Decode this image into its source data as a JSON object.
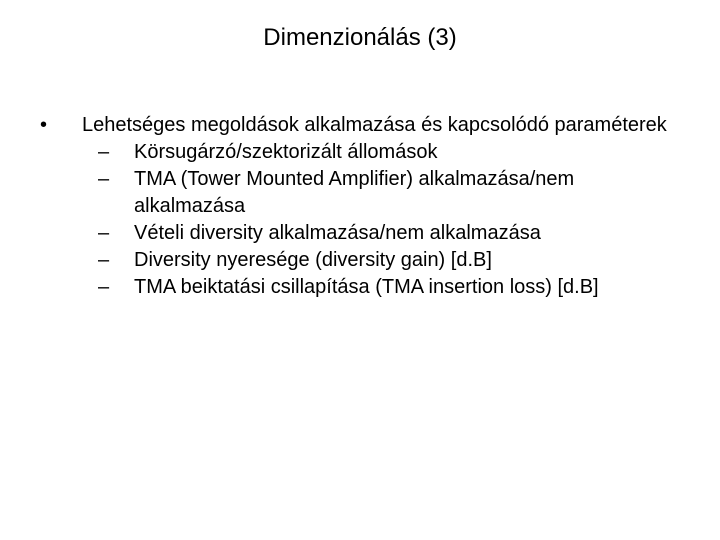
{
  "title": "Dimenzionálás (3)",
  "main_point": "Lehetséges megoldások alkalmazása és kapcsolódó paraméterek",
  "sub_points": [
    "Körsugárzó/szektorizált állomások",
    "TMA (Tower Mounted Amplifier) alkalmazása/nem alkalmazása",
    "Vételi diversity alkalmazása/nem alkalmazása",
    "Diversity nyeresége (diversity gain) [d.B]",
    "TMA beiktatási csillapítása (TMA insertion loss) [d.B]"
  ],
  "style": {
    "background_color": "#ffffff",
    "text_color": "#000000",
    "title_fontsize": 24,
    "body_fontsize": 20,
    "font_family": "Arial"
  }
}
